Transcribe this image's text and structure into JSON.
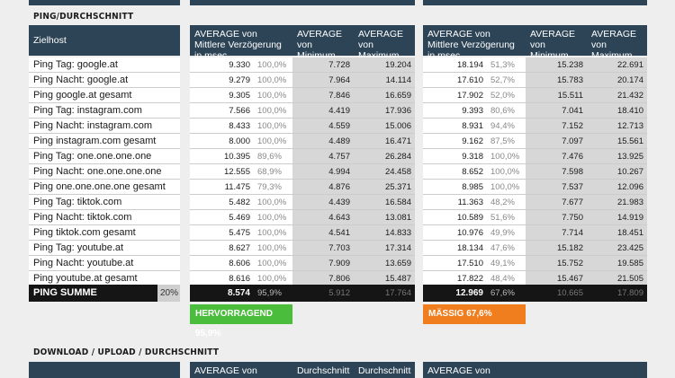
{
  "sections": {
    "ping_title": "PING/DURCHSCHNITT",
    "download_title": "DOWNLOAD / UPLOAD / DURCHSCHNITT"
  },
  "headers": {
    "zielhost": "Zielhost",
    "avg": "AVERAGE von Mittlere Verzögerung in msec",
    "min": "AVERAGE von Minimum",
    "max": "AVERAGE von Maximum"
  },
  "rows": [
    {
      "label": "Ping Tag: google.at",
      "a": [
        "9.330",
        "100,0%",
        "7.728",
        "19.204"
      ],
      "b": [
        "18.194",
        "51,3%",
        "15.238",
        "22.691"
      ]
    },
    {
      "label": "Ping Nacht: google.at",
      "a": [
        "9.279",
        "100,0%",
        "7.964",
        "14.114"
      ],
      "b": [
        "17.610",
        "52,7%",
        "15.783",
        "20.174"
      ]
    },
    {
      "label": "Ping google.at gesamt",
      "a": [
        "9.305",
        "100,0%",
        "7.846",
        "16.659"
      ],
      "b": [
        "17.902",
        "52,0%",
        "15.511",
        "21.432"
      ]
    },
    {
      "label": "Ping Tag: instagram.com",
      "a": [
        "7.566",
        "100,0%",
        "4.419",
        "17.936"
      ],
      "b": [
        "9.393",
        "80,6%",
        "7.041",
        "18.410"
      ]
    },
    {
      "label": "Ping Nacht: instagram.com",
      "a": [
        "8.433",
        "100,0%",
        "4.559",
        "15.006"
      ],
      "b": [
        "8.931",
        "94,4%",
        "7.152",
        "12.713"
      ]
    },
    {
      "label": "Ping instagram.com gesamt",
      "a": [
        "8.000",
        "100,0%",
        "4.489",
        "16.471"
      ],
      "b": [
        "9.162",
        "87,5%",
        "7.097",
        "15.561"
      ]
    },
    {
      "label": "Ping Tag: one.one.one.one",
      "a": [
        "10.395",
        "89,6%",
        "4.757",
        "26.284"
      ],
      "b": [
        "9.318",
        "100,0%",
        "7.476",
        "13.925"
      ]
    },
    {
      "label": "Ping Nacht: one.one.one.one",
      "a": [
        "12.555",
        "68,9%",
        "4.994",
        "24.458"
      ],
      "b": [
        "8.652",
        "100,0%",
        "7.598",
        "10.267"
      ]
    },
    {
      "label": "Ping one.one.one.one gesamt",
      "a": [
        "11.475",
        "79,3%",
        "4.876",
        "25.371"
      ],
      "b": [
        "8.985",
        "100,0%",
        "7.537",
        "12.096"
      ]
    },
    {
      "label": "Ping Tag: tiktok.com",
      "a": [
        "5.482",
        "100,0%",
        "4.439",
        "16.584"
      ],
      "b": [
        "11.363",
        "48,2%",
        "7.677",
        "21.983"
      ]
    },
    {
      "label": "Ping Nacht: tiktok.com",
      "a": [
        "5.469",
        "100,0%",
        "4.643",
        "13.081"
      ],
      "b": [
        "10.589",
        "51,6%",
        "7.750",
        "14.919"
      ]
    },
    {
      "label": "Ping tiktok.com gesamt",
      "a": [
        "5.475",
        "100,0%",
        "4.541",
        "14.833"
      ],
      "b": [
        "10.976",
        "49,9%",
        "7.714",
        "18.451"
      ]
    },
    {
      "label": "Ping Tag: youtube.at",
      "a": [
        "8.627",
        "100,0%",
        "7.703",
        "17.314"
      ],
      "b": [
        "18.134",
        "47,6%",
        "15.182",
        "23.425"
      ]
    },
    {
      "label": "Ping Nacht: youtube.at",
      "a": [
        "8.606",
        "100,0%",
        "7.909",
        "13.659"
      ],
      "b": [
        "17.510",
        "49,1%",
        "15.752",
        "19.585"
      ]
    },
    {
      "label": "Ping youtube.at gesamt",
      "a": [
        "8.616",
        "100,0%",
        "7.806",
        "15.487"
      ],
      "b": [
        "17.822",
        "48,4%",
        "15.467",
        "21.505"
      ]
    }
  ],
  "summary": {
    "label": "PING SUMME",
    "weight": "20%",
    "a": [
      "8.574",
      "95,9%",
      "5.912",
      "17.764"
    ],
    "b": [
      "12.969",
      "67,6%",
      "10.665",
      "17.809"
    ]
  },
  "badges": {
    "a": "HERVORRAGEND 95,9%",
    "b": "MÄSSIG 67,6%"
  },
  "download_headers": {
    "avg": "AVERAGE von",
    "c2": "Durchschnitt",
    "c3": "Durchschnitt",
    "b_avg": "AVERAGE von"
  },
  "colors": {
    "header": "#2d4456",
    "good": "#4bbd3c",
    "medium": "#f07d1e",
    "summary": "#151515"
  }
}
